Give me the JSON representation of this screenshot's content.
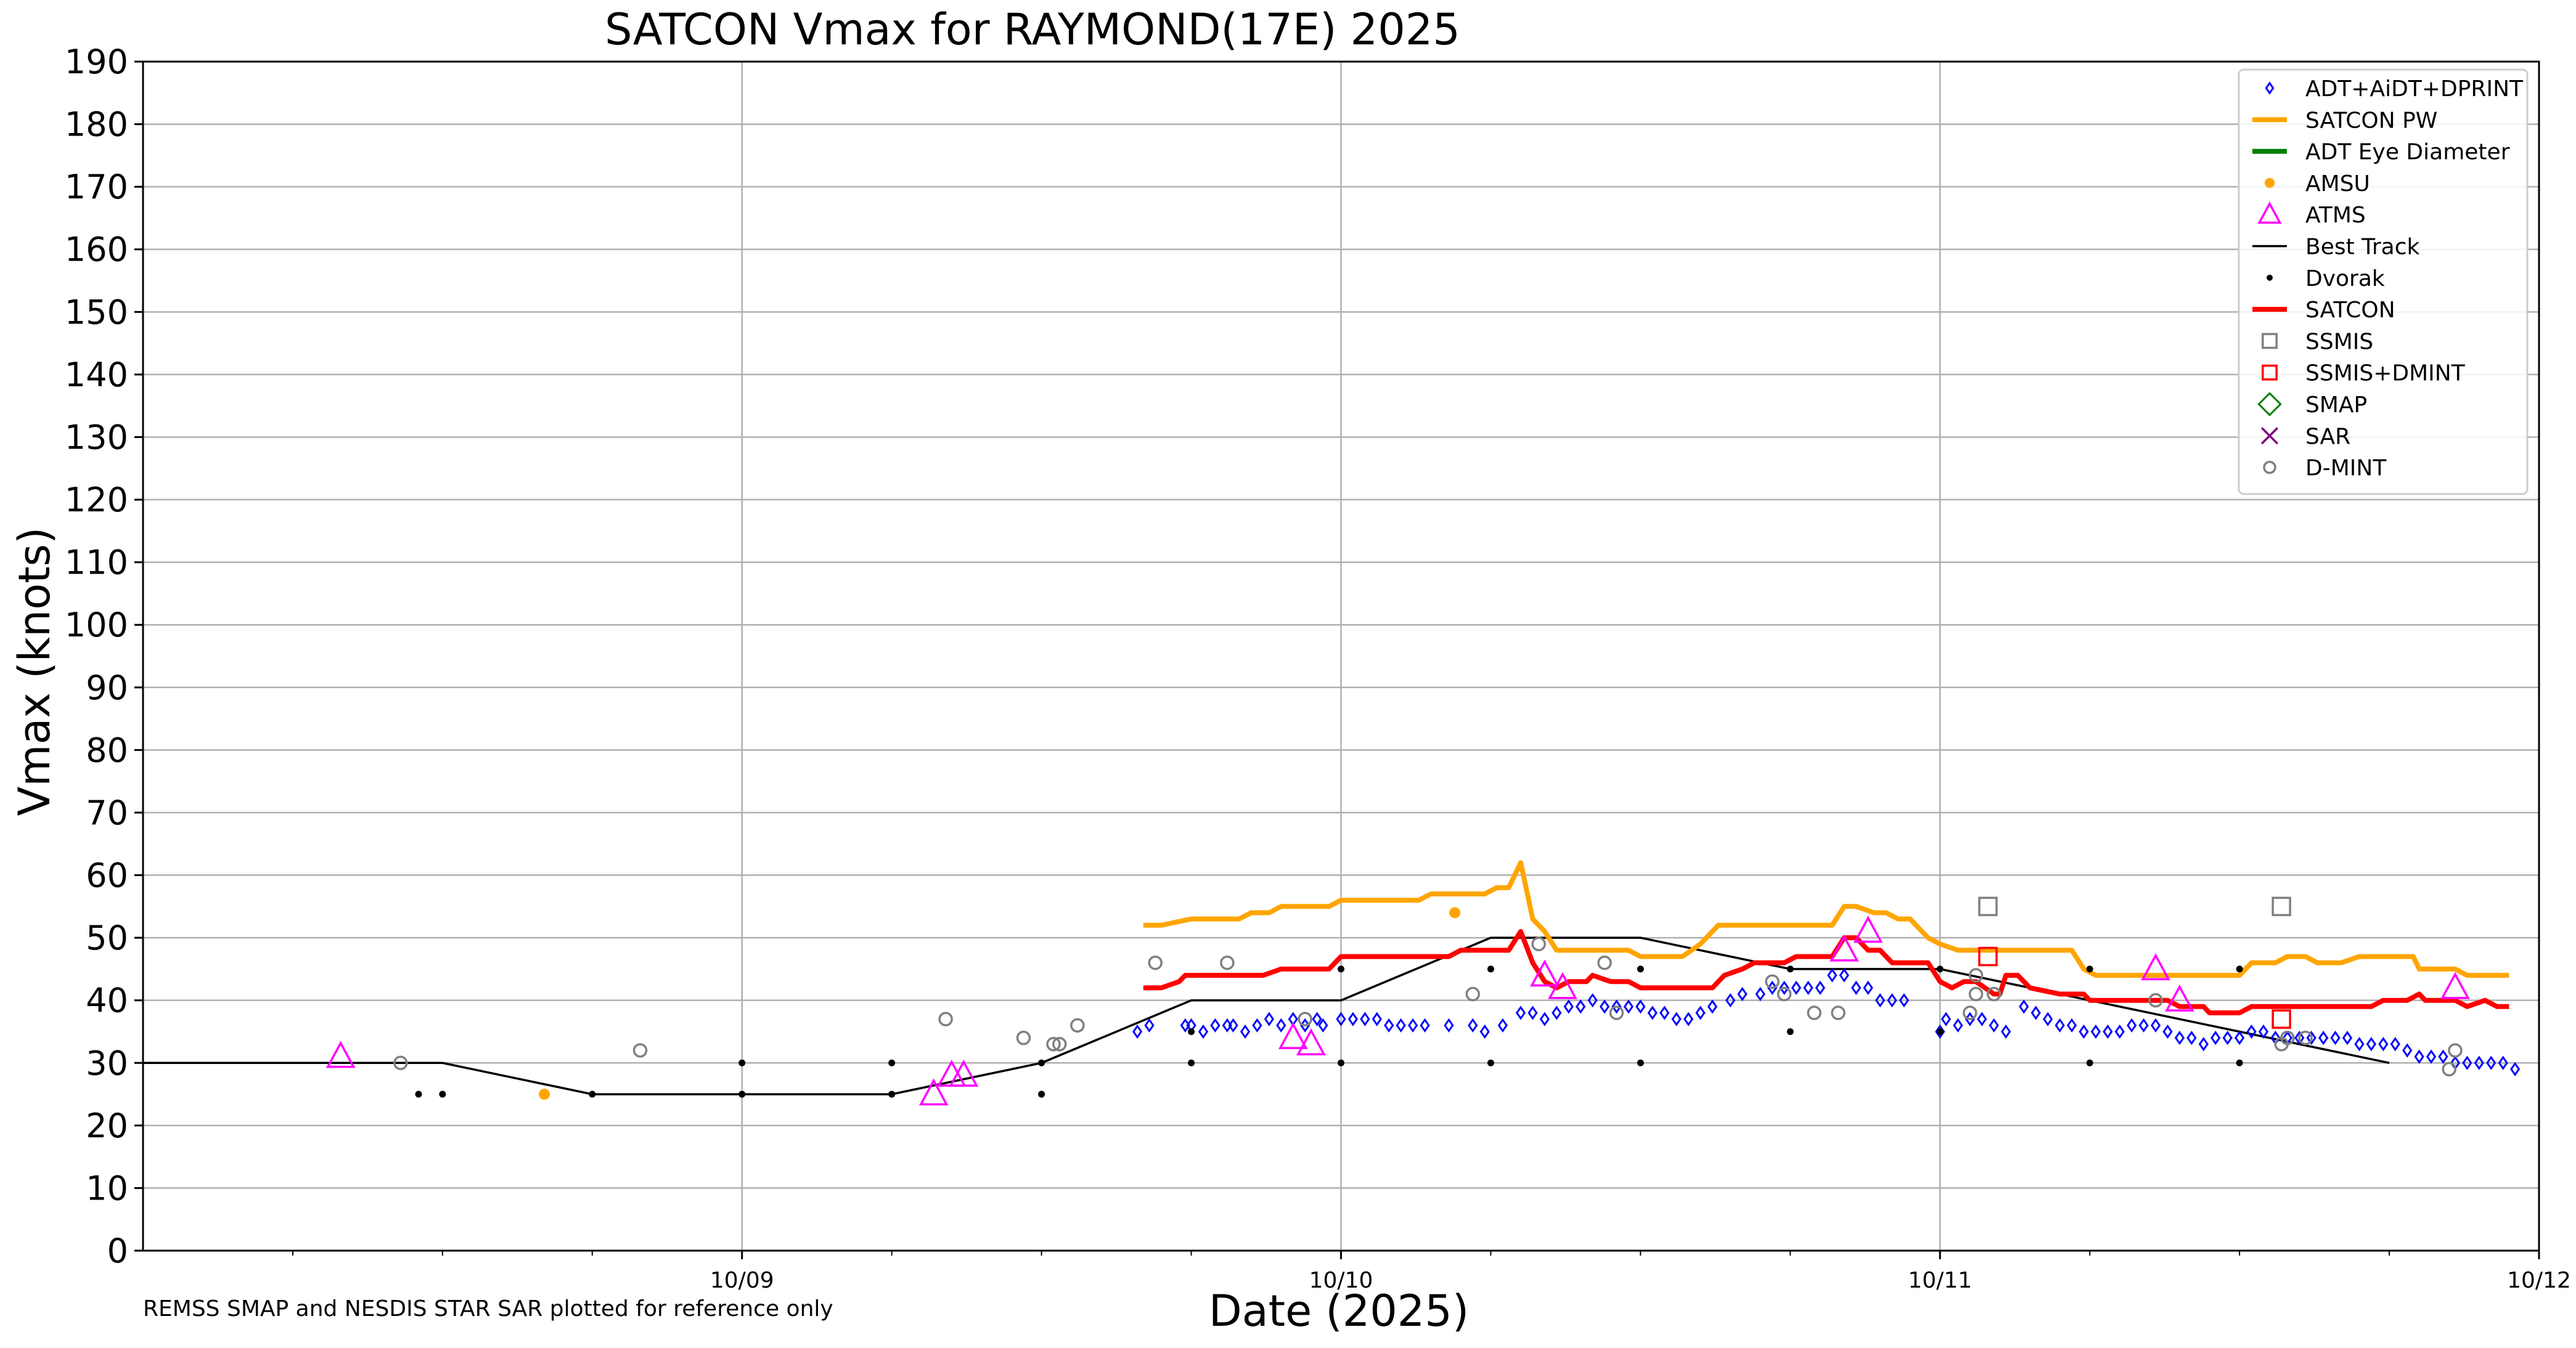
{
  "chart_data": {
    "type": "scatter",
    "title": "SATCON Vmax for RAYMOND(17E) 2025",
    "xlabel": "Date (2025)",
    "ylabel": "Vmax (knots)",
    "xlim": [
      8.0,
      12.0
    ],
    "ylim": [
      0,
      190
    ],
    "yticks": [
      0,
      10,
      20,
      30,
      40,
      50,
      60,
      70,
      80,
      90,
      100,
      110,
      120,
      130,
      140,
      150,
      160,
      170,
      180,
      190
    ],
    "xticks": [
      {
        "x": 9.0,
        "label": "10/09"
      },
      {
        "x": 10.0,
        "label": "10/10"
      },
      {
        "x": 11.0,
        "label": "10/11"
      },
      {
        "x": 12.0,
        "label": "10/12"
      }
    ],
    "grid": true,
    "legend_position": "top-right",
    "footnote": "REMSS SMAP and NESDIS STAR SAR plotted for reference only",
    "legend": [
      {
        "label": "ADT+AiDT+DPRINT",
        "kind": "diamond",
        "color": "#0000ff"
      },
      {
        "label": "SATCON PW",
        "kind": "line",
        "color": "#ffa500"
      },
      {
        "label": "ADT Eye Diameter",
        "kind": "line",
        "color": "#008000"
      },
      {
        "label": "AMSU",
        "kind": "dot",
        "color": "#ffa500"
      },
      {
        "label": "ATMS",
        "kind": "triangle",
        "color": "#ff00ff"
      },
      {
        "label": "Best Track",
        "kind": "thinline",
        "color": "#000000"
      },
      {
        "label": "Dvorak",
        "kind": "smalldot",
        "color": "#000000"
      },
      {
        "label": "SATCON",
        "kind": "line",
        "color": "#ff0000"
      },
      {
        "label": "SSMIS",
        "kind": "square",
        "color": "#808080"
      },
      {
        "label": "SSMIS+DMINT",
        "kind": "square",
        "color": "#ff0000"
      },
      {
        "label": "SMAP",
        "kind": "bigdiamond",
        "color": "#008000"
      },
      {
        "label": "SAR",
        "kind": "cross",
        "color": "#800080"
      },
      {
        "label": "D-MINT",
        "kind": "circle",
        "color": "#808080"
      }
    ],
    "series": {
      "best_track": [
        [
          8.0,
          30
        ],
        [
          8.5,
          30
        ],
        [
          8.75,
          25
        ],
        [
          9.0,
          25
        ],
        [
          9.25,
          25
        ],
        [
          9.5,
          30
        ],
        [
          9.75,
          40
        ],
        [
          10.0,
          40
        ],
        [
          10.25,
          50
        ],
        [
          10.5,
          50
        ],
        [
          10.75,
          45
        ],
        [
          11.0,
          45
        ],
        [
          11.25,
          40
        ],
        [
          11.5,
          35
        ],
        [
          11.75,
          30
        ]
      ],
      "satcon_pw": [
        [
          9.67,
          52
        ],
        [
          9.7,
          52
        ],
        [
          9.75,
          53
        ],
        [
          9.83,
          53
        ],
        [
          9.85,
          54
        ],
        [
          9.88,
          54
        ],
        [
          9.9,
          55
        ],
        [
          9.98,
          55
        ],
        [
          10.0,
          56
        ],
        [
          10.13,
          56
        ],
        [
          10.15,
          57
        ],
        [
          10.24,
          57
        ],
        [
          10.26,
          58
        ],
        [
          10.28,
          58
        ],
        [
          10.3,
          62
        ],
        [
          10.32,
          53
        ],
        [
          10.34,
          51
        ],
        [
          10.36,
          48
        ],
        [
          10.48,
          48
        ],
        [
          10.5,
          47
        ],
        [
          10.57,
          47
        ],
        [
          10.6,
          49
        ],
        [
          10.63,
          52
        ],
        [
          10.75,
          52
        ],
        [
          10.82,
          52
        ],
        [
          10.84,
          55
        ],
        [
          10.86,
          55
        ],
        [
          10.89,
          54
        ],
        [
          10.91,
          54
        ],
        [
          10.93,
          53
        ],
        [
          10.95,
          53
        ],
        [
          10.98,
          50
        ],
        [
          11.0,
          49
        ],
        [
          11.03,
          48
        ],
        [
          11.22,
          48
        ],
        [
          11.24,
          45
        ],
        [
          11.26,
          44
        ],
        [
          11.5,
          44
        ],
        [
          11.52,
          46
        ],
        [
          11.56,
          46
        ],
        [
          11.58,
          47
        ],
        [
          11.61,
          47
        ],
        [
          11.63,
          46
        ],
        [
          11.67,
          46
        ],
        [
          11.7,
          47
        ],
        [
          11.79,
          47
        ],
        [
          11.8,
          45
        ],
        [
          11.86,
          45
        ],
        [
          11.88,
          44
        ],
        [
          11.95,
          44
        ]
      ],
      "satcon": [
        [
          9.67,
          42
        ],
        [
          9.7,
          42
        ],
        [
          9.73,
          43
        ],
        [
          9.74,
          44
        ],
        [
          9.87,
          44
        ],
        [
          9.9,
          45
        ],
        [
          9.98,
          45
        ],
        [
          10.0,
          47
        ],
        [
          10.18,
          47
        ],
        [
          10.2,
          48
        ],
        [
          10.28,
          48
        ],
        [
          10.3,
          51
        ],
        [
          10.32,
          46
        ],
        [
          10.34,
          43
        ],
        [
          10.36,
          42
        ],
        [
          10.38,
          43
        ],
        [
          10.41,
          43
        ],
        [
          10.42,
          44
        ],
        [
          10.45,
          43
        ],
        [
          10.48,
          43
        ],
        [
          10.5,
          42
        ],
        [
          10.62,
          42
        ],
        [
          10.64,
          44
        ],
        [
          10.67,
          45
        ],
        [
          10.69,
          46
        ],
        [
          10.74,
          46
        ],
        [
          10.76,
          47
        ],
        [
          10.82,
          47
        ],
        [
          10.84,
          50
        ],
        [
          10.86,
          50
        ],
        [
          10.88,
          48
        ],
        [
          10.9,
          48
        ],
        [
          10.92,
          46
        ],
        [
          10.98,
          46
        ],
        [
          11.0,
          43
        ],
        [
          11.02,
          42
        ],
        [
          11.04,
          43
        ],
        [
          11.06,
          43
        ],
        [
          11.09,
          41
        ],
        [
          11.1,
          41
        ],
        [
          11.11,
          44
        ],
        [
          11.13,
          44
        ],
        [
          11.15,
          42
        ],
        [
          11.2,
          41
        ],
        [
          11.24,
          41
        ],
        [
          11.25,
          40
        ],
        [
          11.38,
          40
        ],
        [
          11.4,
          39
        ],
        [
          11.42,
          39
        ],
        [
          11.44,
          39
        ],
        [
          11.45,
          38
        ],
        [
          11.48,
          38
        ],
        [
          11.5,
          38
        ],
        [
          11.52,
          39
        ],
        [
          11.72,
          39
        ],
        [
          11.74,
          40
        ],
        [
          11.78,
          40
        ],
        [
          11.8,
          41
        ],
        [
          11.81,
          40
        ],
        [
          11.86,
          40
        ],
        [
          11.88,
          39
        ],
        [
          11.91,
          40
        ],
        [
          11.93,
          39
        ],
        [
          11.95,
          39
        ]
      ],
      "adt": [
        [
          9.66,
          35
        ],
        [
          9.68,
          36
        ],
        [
          9.74,
          36
        ],
        [
          9.75,
          36
        ],
        [
          9.77,
          35
        ],
        [
          9.79,
          36
        ],
        [
          9.81,
          36
        ],
        [
          9.82,
          36
        ],
        [
          9.84,
          35
        ],
        [
          9.86,
          36
        ],
        [
          9.88,
          37
        ],
        [
          9.9,
          36
        ],
        [
          9.92,
          37
        ],
        [
          9.94,
          36
        ],
        [
          9.96,
          37
        ],
        [
          9.97,
          36
        ],
        [
          10.0,
          37
        ],
        [
          10.02,
          37
        ],
        [
          10.04,
          37
        ],
        [
          10.06,
          37
        ],
        [
          10.08,
          36
        ],
        [
          10.1,
          36
        ],
        [
          10.12,
          36
        ],
        [
          10.14,
          36
        ],
        [
          10.18,
          36
        ],
        [
          10.22,
          36
        ],
        [
          10.24,
          35
        ],
        [
          10.27,
          36
        ],
        [
          10.3,
          38
        ],
        [
          10.32,
          38
        ],
        [
          10.34,
          37
        ],
        [
          10.36,
          38
        ],
        [
          10.38,
          39
        ],
        [
          10.4,
          39
        ],
        [
          10.42,
          40
        ],
        [
          10.44,
          39
        ],
        [
          10.46,
          39
        ],
        [
          10.48,
          39
        ],
        [
          10.5,
          39
        ],
        [
          10.52,
          38
        ],
        [
          10.54,
          38
        ],
        [
          10.56,
          37
        ],
        [
          10.58,
          37
        ],
        [
          10.6,
          38
        ],
        [
          10.62,
          39
        ],
        [
          10.65,
          40
        ],
        [
          10.67,
          41
        ],
        [
          10.7,
          41
        ],
        [
          10.72,
          42
        ],
        [
          10.74,
          42
        ],
        [
          10.76,
          42
        ],
        [
          10.78,
          42
        ],
        [
          10.8,
          42
        ],
        [
          10.82,
          44
        ],
        [
          10.84,
          44
        ],
        [
          10.86,
          42
        ],
        [
          10.88,
          42
        ],
        [
          10.9,
          40
        ],
        [
          10.92,
          40
        ],
        [
          10.94,
          40
        ],
        [
          11.0,
          35
        ],
        [
          11.01,
          37
        ],
        [
          11.03,
          36
        ],
        [
          11.05,
          37
        ],
        [
          11.07,
          37
        ],
        [
          11.09,
          36
        ],
        [
          11.11,
          35
        ],
        [
          11.14,
          39
        ],
        [
          11.16,
          38
        ],
        [
          11.18,
          37
        ],
        [
          11.2,
          36
        ],
        [
          11.22,
          36
        ],
        [
          11.24,
          35
        ],
        [
          11.26,
          35
        ],
        [
          11.28,
          35
        ],
        [
          11.3,
          35
        ],
        [
          11.32,
          36
        ],
        [
          11.34,
          36
        ],
        [
          11.36,
          36
        ],
        [
          11.38,
          35
        ],
        [
          11.4,
          34
        ],
        [
          11.42,
          34
        ],
        [
          11.44,
          33
        ],
        [
          11.46,
          34
        ],
        [
          11.48,
          34
        ],
        [
          11.5,
          34
        ],
        [
          11.52,
          35
        ],
        [
          11.54,
          35
        ],
        [
          11.56,
          34
        ],
        [
          11.58,
          34
        ],
        [
          11.6,
          34
        ],
        [
          11.62,
          34
        ],
        [
          11.64,
          34
        ],
        [
          11.66,
          34
        ],
        [
          11.68,
          34
        ],
        [
          11.7,
          33
        ],
        [
          11.72,
          33
        ],
        [
          11.74,
          33
        ],
        [
          11.76,
          33
        ],
        [
          11.78,
          32
        ],
        [
          11.8,
          31
        ],
        [
          11.82,
          31
        ],
        [
          11.84,
          31
        ],
        [
          11.86,
          30
        ],
        [
          11.88,
          30
        ],
        [
          11.9,
          30
        ],
        [
          11.92,
          30
        ],
        [
          11.94,
          30
        ],
        [
          11.96,
          29
        ]
      ],
      "dvorak": [
        [
          8.46,
          25
        ],
        [
          8.5,
          25
        ],
        [
          8.75,
          25
        ],
        [
          9.0,
          30
        ],
        [
          9.0,
          25
        ],
        [
          9.25,
          30
        ],
        [
          9.25,
          25
        ],
        [
          9.5,
          30
        ],
        [
          9.5,
          25
        ],
        [
          9.75,
          30
        ],
        [
          9.75,
          35
        ],
        [
          10.0,
          45
        ],
        [
          10.0,
          30
        ],
        [
          10.25,
          45
        ],
        [
          10.25,
          30
        ],
        [
          10.5,
          45
        ],
        [
          10.5,
          30
        ],
        [
          10.75,
          45
        ],
        [
          10.75,
          35
        ],
        [
          11.0,
          45
        ],
        [
          11.0,
          35
        ],
        [
          11.25,
          45
        ],
        [
          11.25,
          30
        ],
        [
          11.5,
          45
        ],
        [
          11.5,
          30
        ]
      ],
      "amsu": [
        [
          8.67,
          25
        ],
        [
          10.19,
          54
        ]
      ],
      "atms": [
        [
          8.33,
          31
        ],
        [
          9.32,
          25
        ],
        [
          9.35,
          28
        ],
        [
          9.37,
          28
        ],
        [
          9.92,
          34
        ],
        [
          9.95,
          33
        ],
        [
          10.34,
          44
        ],
        [
          10.37,
          42
        ],
        [
          10.84,
          48
        ],
        [
          10.88,
          51
        ],
        [
          11.36,
          45
        ],
        [
          11.4,
          40
        ],
        [
          11.86,
          42
        ]
      ],
      "dmint": [
        [
          8.43,
          30
        ],
        [
          8.83,
          32
        ],
        [
          9.34,
          37
        ],
        [
          9.47,
          34
        ],
        [
          9.52,
          33
        ],
        [
          9.53,
          33
        ],
        [
          9.56,
          36
        ],
        [
          9.69,
          46
        ],
        [
          9.81,
          46
        ],
        [
          9.94,
          37
        ],
        [
          10.22,
          41
        ],
        [
          10.33,
          49
        ],
        [
          10.44,
          46
        ],
        [
          10.46,
          38
        ],
        [
          10.72,
          43
        ],
        [
          10.74,
          41
        ],
        [
          10.79,
          38
        ],
        [
          10.83,
          38
        ],
        [
          11.05,
          38
        ],
        [
          11.06,
          44
        ],
        [
          11.06,
          41
        ],
        [
          11.09,
          41
        ],
        [
          11.36,
          40
        ],
        [
          11.57,
          33
        ],
        [
          11.58,
          34
        ],
        [
          11.61,
          34
        ],
        [
          11.85,
          29
        ],
        [
          11.86,
          32
        ]
      ],
      "ssmis": [
        [
          11.08,
          55
        ],
        [
          11.57,
          55
        ]
      ],
      "ssmis_dmint": [
        [
          11.08,
          47
        ],
        [
          11.57,
          37
        ]
      ]
    }
  }
}
